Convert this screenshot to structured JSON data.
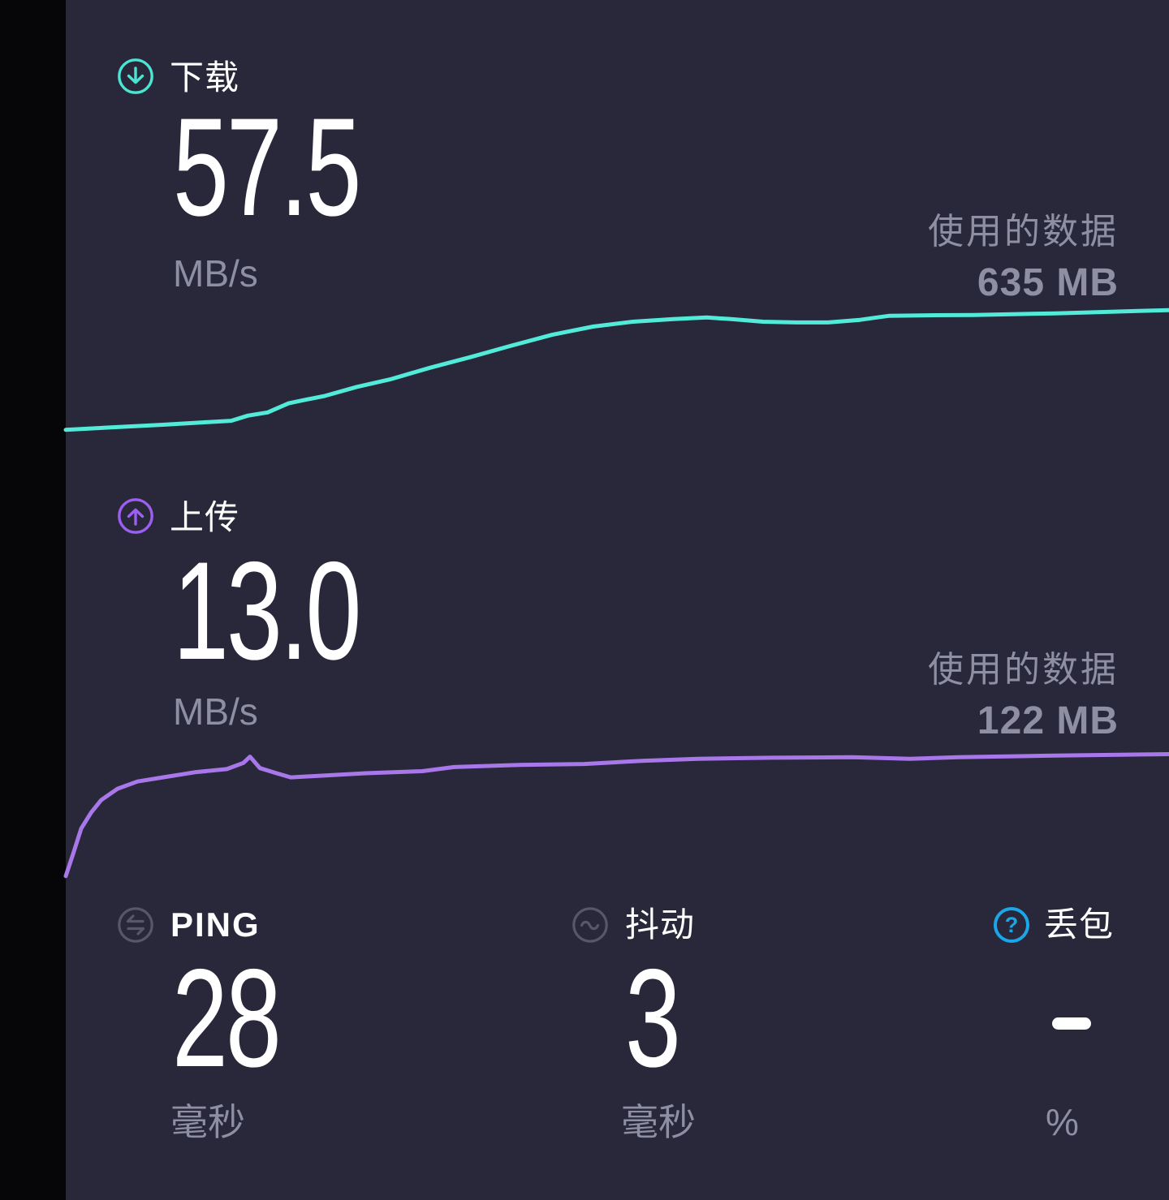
{
  "colors": {
    "background": "#28283a",
    "left_strip": "#060609",
    "download_accent": "#4be6d3",
    "upload_accent": "#9d5ff1",
    "muted_text": "#8f8fa3",
    "gray_icon": "#575769",
    "info_blue": "#1ba6ea"
  },
  "download": {
    "label": "下载",
    "value": "57.5",
    "unit": "MB/s",
    "data_used_label": "使用的数据",
    "data_used_value": "635 MB"
  },
  "upload": {
    "label": "上传",
    "value": "13.0",
    "unit": "MB/s",
    "data_used_label": "使用的数据",
    "data_used_value": "122 MB"
  },
  "metrics": {
    "ping": {
      "label": "PING",
      "value": "28",
      "unit": "毫秒"
    },
    "jitter": {
      "label": "抖动",
      "value": "3",
      "unit": "毫秒"
    },
    "packet_loss": {
      "label": "丢包",
      "value": "—",
      "unit": "%"
    }
  },
  "chart_data": [
    {
      "type": "line",
      "name": "download_speed_over_time",
      "title": "",
      "xlabel": "",
      "ylabel": "MB/s",
      "x_range": [
        0,
        1
      ],
      "ylim": [
        0,
        60
      ],
      "grid": false,
      "legend": "none",
      "series": [
        {
          "name": "下载",
          "color": "#52ead8",
          "points": [
            [
              0.0,
              6.0
            ],
            [
              0.043,
              7.1
            ],
            [
              0.088,
              8.2
            ],
            [
              0.124,
              9.2
            ],
            [
              0.15,
              9.9
            ],
            [
              0.165,
              12.1
            ],
            [
              0.183,
              13.5
            ],
            [
              0.202,
              17.4
            ],
            [
              0.216,
              18.8
            ],
            [
              0.235,
              20.6
            ],
            [
              0.264,
              24.5
            ],
            [
              0.294,
              27.7
            ],
            [
              0.33,
              32.7
            ],
            [
              0.367,
              37.3
            ],
            [
              0.404,
              42.2
            ],
            [
              0.441,
              46.9
            ],
            [
              0.478,
              50.4
            ],
            [
              0.514,
              52.5
            ],
            [
              0.551,
              53.6
            ],
            [
              0.581,
              54.3
            ],
            [
              0.603,
              53.6
            ],
            [
              0.632,
              52.5
            ],
            [
              0.662,
              52.2
            ],
            [
              0.691,
              52.2
            ],
            [
              0.72,
              53.3
            ],
            [
              0.735,
              54.3
            ],
            [
              0.746,
              55.0
            ],
            [
              0.787,
              55.3
            ],
            [
              0.823,
              55.4
            ],
            [
              0.897,
              56.1
            ],
            [
              1.0,
              57.5
            ]
          ]
        }
      ]
    },
    {
      "type": "line",
      "name": "upload_speed_over_time",
      "title": "",
      "xlabel": "",
      "ylabel": "MB/s",
      "x_range": [
        0,
        1
      ],
      "ylim": [
        0,
        13.5
      ],
      "grid": false,
      "legend": "none",
      "series": [
        {
          "name": "上传",
          "color": "#a877ea",
          "points": [
            [
              0.0,
              1.35
            ],
            [
              0.007,
              3.6
            ],
            [
              0.014,
              5.95
            ],
            [
              0.023,
              7.5
            ],
            [
              0.032,
              8.7
            ],
            [
              0.047,
              9.8
            ],
            [
              0.065,
              10.5
            ],
            [
              0.088,
              10.9
            ],
            [
              0.117,
              11.4
            ],
            [
              0.146,
              11.7
            ],
            [
              0.161,
              12.3
            ],
            [
              0.167,
              12.9
            ],
            [
              0.176,
              11.8
            ],
            [
              0.191,
              11.3
            ],
            [
              0.204,
              10.9
            ],
            [
              0.22,
              11.0
            ],
            [
              0.272,
              11.3
            ],
            [
              0.323,
              11.5
            ],
            [
              0.352,
              11.9
            ],
            [
              0.411,
              12.1
            ],
            [
              0.47,
              12.2
            ],
            [
              0.522,
              12.5
            ],
            [
              0.573,
              12.7
            ],
            [
              0.64,
              12.8
            ],
            [
              0.713,
              12.85
            ],
            [
              0.765,
              12.7
            ],
            [
              0.809,
              12.85
            ],
            [
              0.89,
              13.0
            ],
            [
              1.0,
              13.15
            ]
          ]
        }
      ]
    }
  ]
}
